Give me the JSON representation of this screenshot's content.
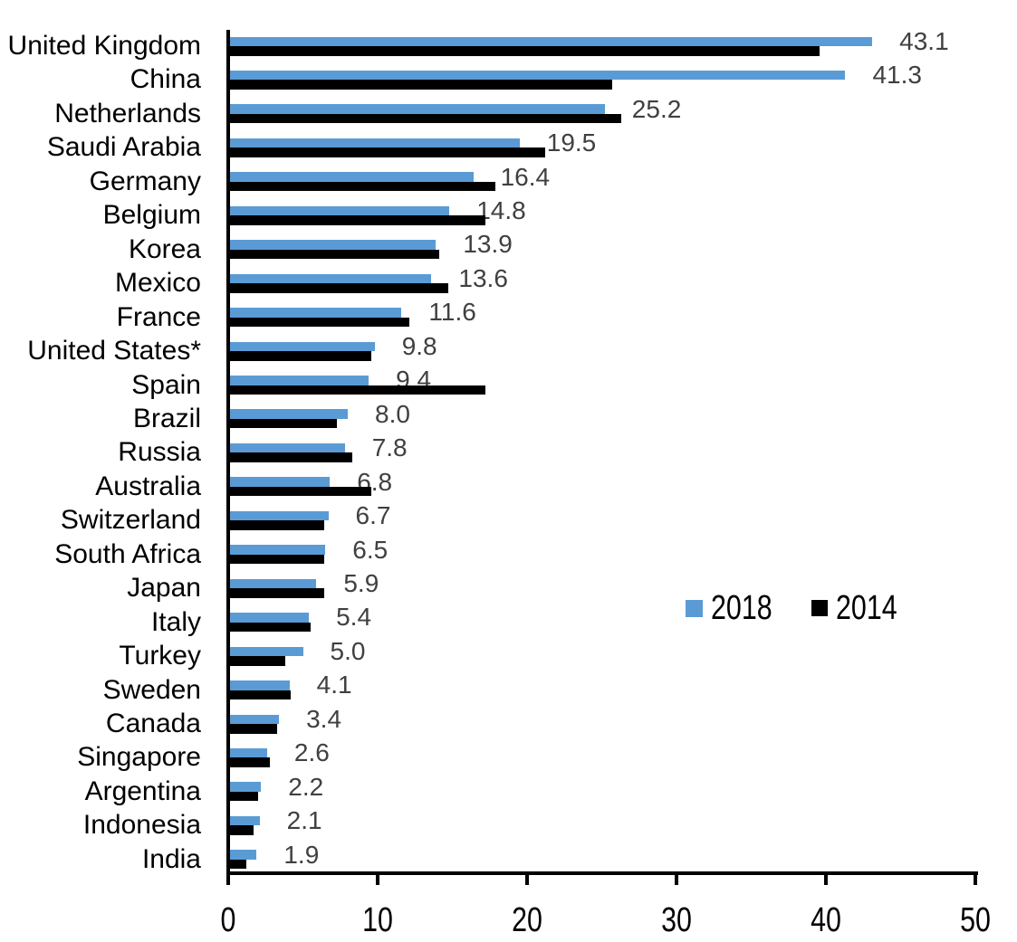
{
  "chart_data": {
    "type": "bar",
    "orientation": "horizontal",
    "title": "",
    "xlabel": "",
    "ylabel": "",
    "xlim": [
      0,
      50
    ],
    "x_ticks": [
      0,
      10,
      20,
      30,
      40,
      50
    ],
    "grid": false,
    "legend_position": "middle-right",
    "categories": [
      "United Kingdom",
      "China",
      "Netherlands",
      "Saudi Arabia",
      "Germany",
      "Belgium",
      "Korea",
      "Mexico",
      "France",
      "United States*",
      "Spain",
      "Brazil",
      "Russia",
      "Australia",
      "Switzerland",
      "South Africa",
      "Japan",
      "Italy",
      "Turkey",
      "Sweden",
      "Canada",
      "Singapore",
      "Argentina",
      "Indonesia",
      "India"
    ],
    "series": [
      {
        "name": "2018",
        "color": "#5B9BD5",
        "values": [
          43.1,
          41.3,
          25.2,
          19.5,
          16.4,
          14.8,
          13.9,
          13.6,
          11.6,
          9.8,
          9.4,
          8.0,
          7.8,
          6.8,
          6.7,
          6.5,
          5.9,
          5.4,
          5.0,
          4.1,
          3.4,
          2.6,
          2.2,
          2.1,
          1.9
        ]
      },
      {
        "name": "2014",
        "color": "#000000",
        "values": [
          39.6,
          25.7,
          26.3,
          21.2,
          17.9,
          17.2,
          14.1,
          14.7,
          12.1,
          9.6,
          17.2,
          7.3,
          8.3,
          9.6,
          6.4,
          6.4,
          6.4,
          5.5,
          3.8,
          4.2,
          3.3,
          2.8,
          2.0,
          1.7,
          1.2
        ]
      }
    ],
    "data_labels": {
      "attached_to_series": "2018",
      "values": [
        "43.1",
        "41.3",
        "25.2",
        "19.5",
        "16.4",
        "14.8",
        "13.9",
        "13.6",
        "11.6",
        "9.8",
        "9.4",
        "8.0",
        "7.8",
        "6.8",
        "6.7",
        "6.5",
        "5.9",
        "5.4",
        "5.0",
        "4.1",
        "3.4",
        "2.6",
        "2.2",
        "2.1",
        "1.9"
      ],
      "color": "#404040"
    },
    "axis_color": "#000000",
    "background_color": "#ffffff"
  },
  "legend": {
    "items": [
      {
        "label": "2018",
        "color": "#5B9BD5"
      },
      {
        "label": "2014",
        "color": "#000000"
      }
    ]
  }
}
